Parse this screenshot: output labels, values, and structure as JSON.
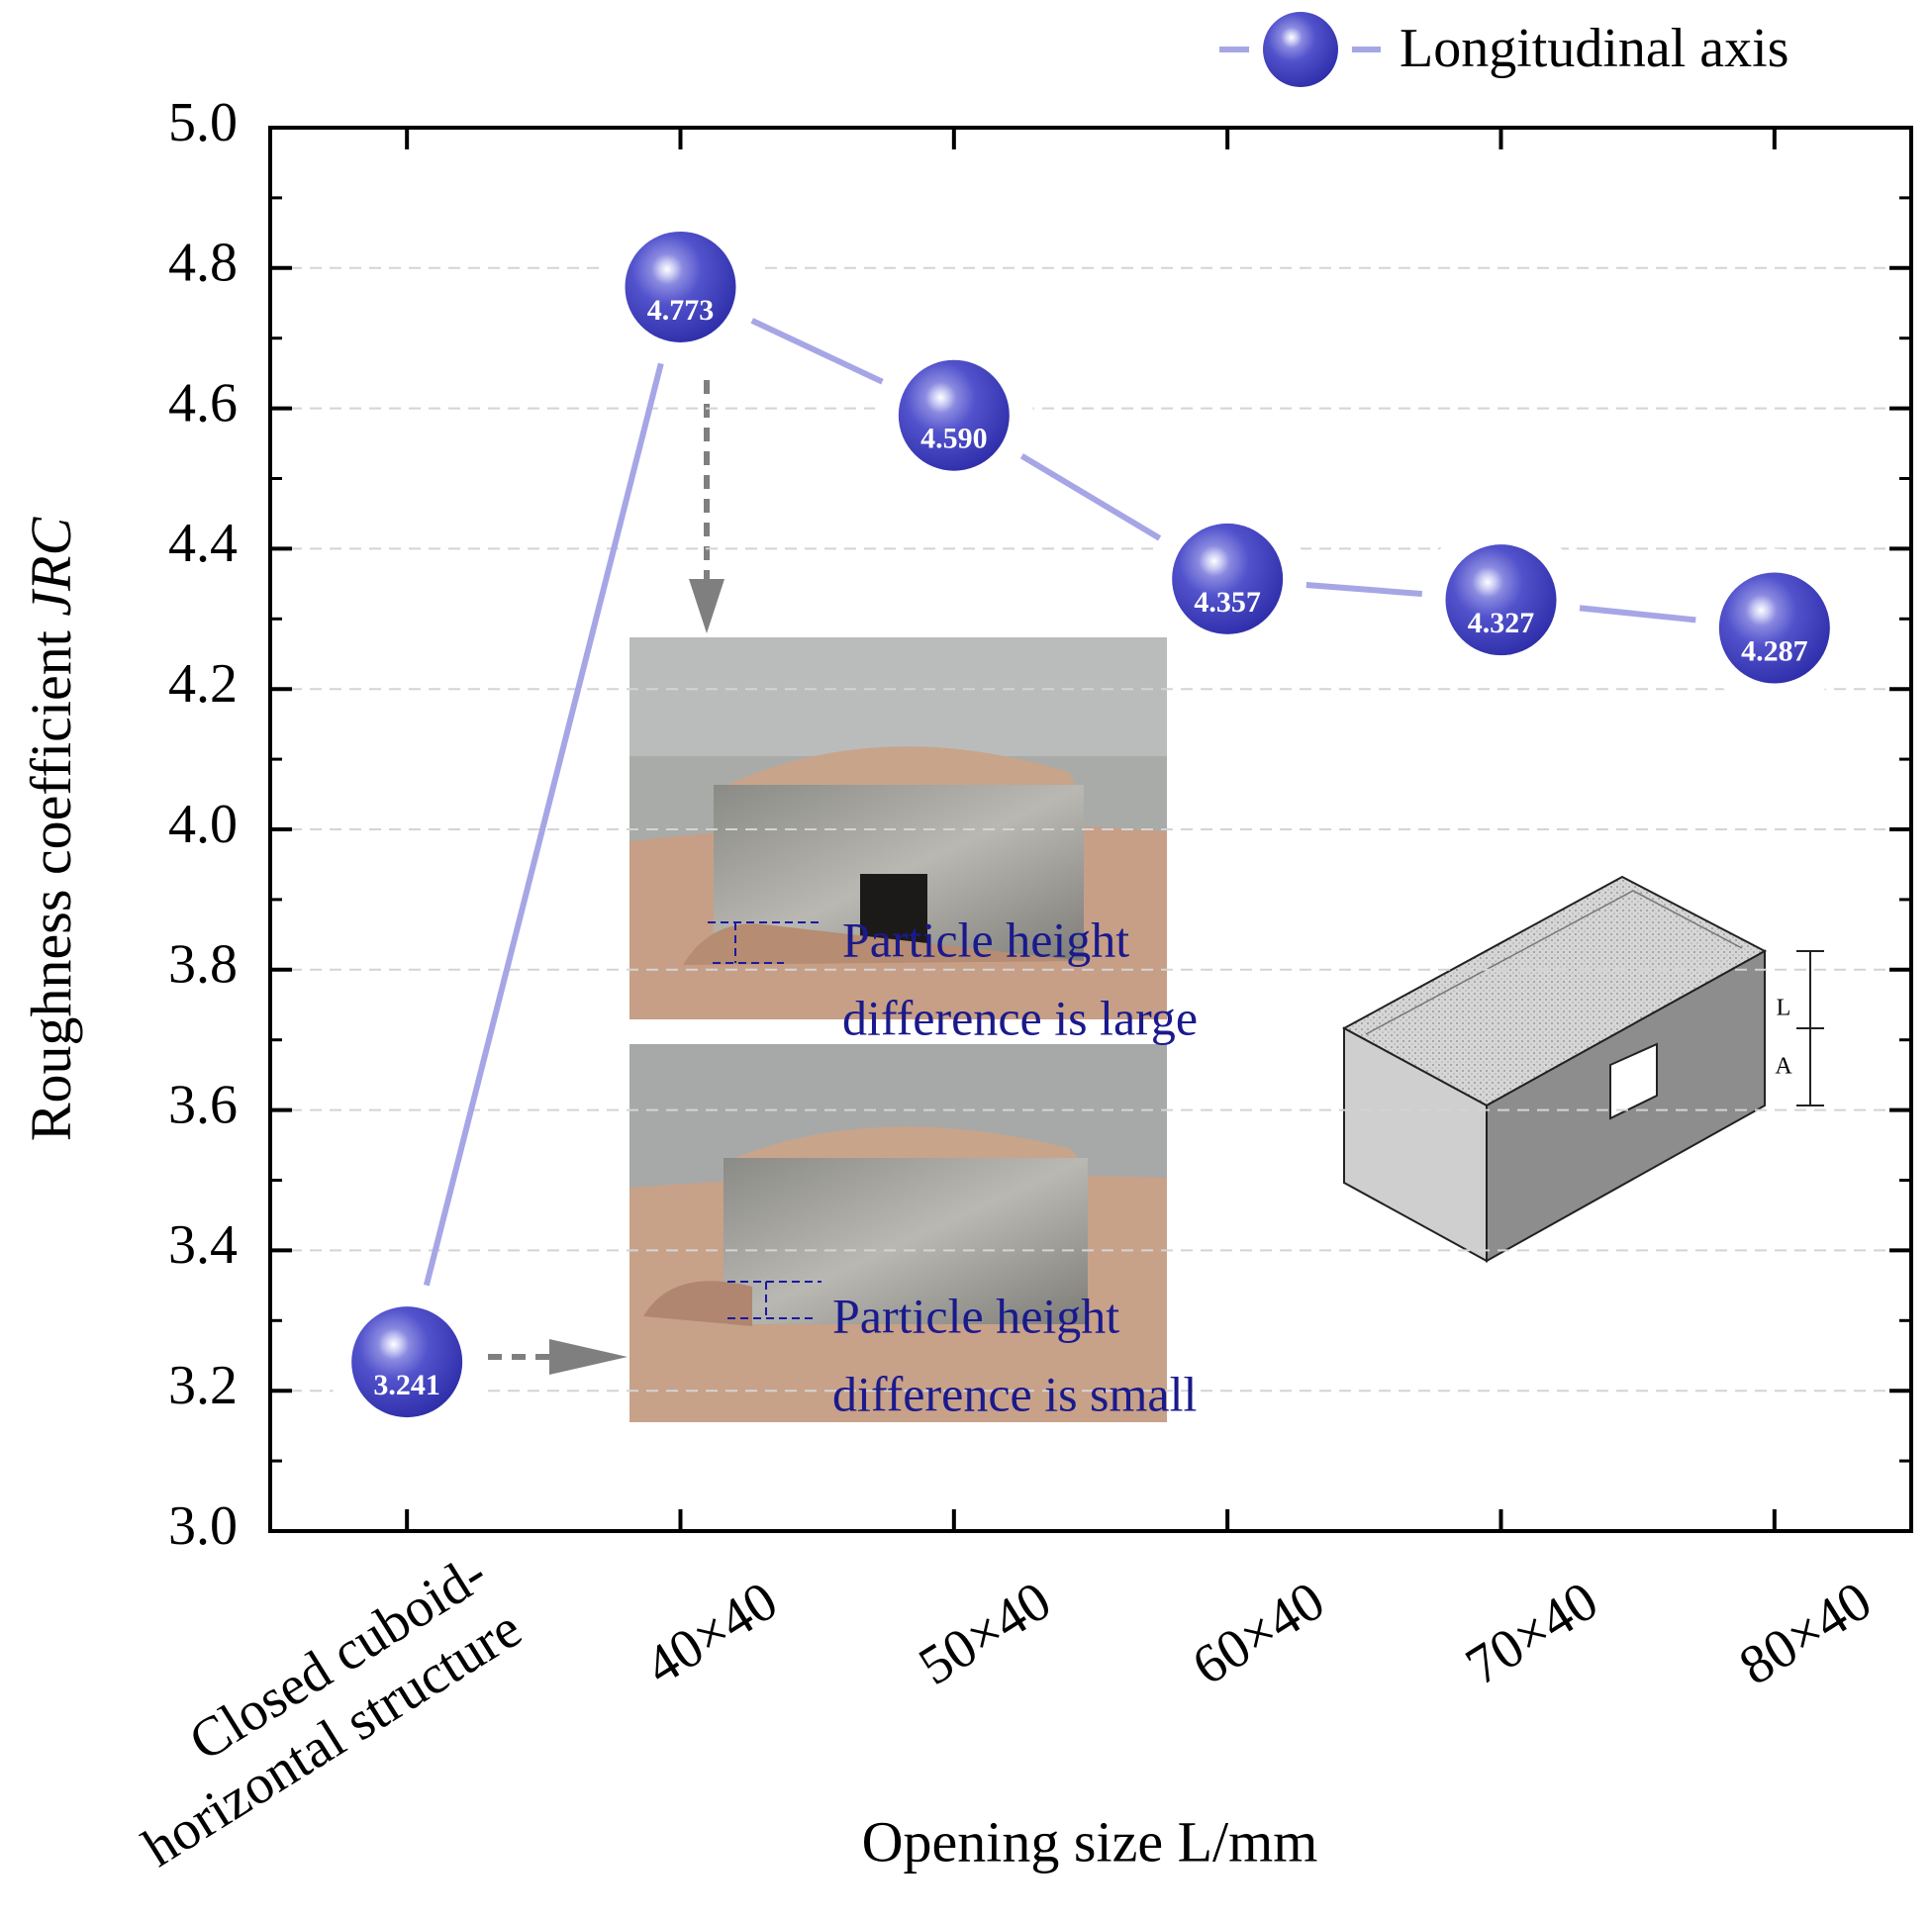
{
  "chart_data": {
    "type": "line",
    "x_label": "Opening size L/mm",
    "y_label": {
      "text": "Roughness coefficient",
      "italic": "JRC"
    },
    "categories": [
      "Closed cuboid-\nhorizontal structure",
      "40×40",
      "50×40",
      "60×40",
      "70×40",
      "80×40"
    ],
    "series": [
      {
        "name": "Longitudinal axis",
        "color": "#4b4bc6",
        "line_color": "#a6a6e6",
        "values": [
          3.241,
          4.773,
          4.59,
          4.357,
          4.327,
          4.287
        ],
        "value_labels": [
          "3.241",
          "4.773",
          "4.590",
          "4.357",
          "4.327",
          "4.287"
        ]
      }
    ],
    "ylim": [
      3,
      5
    ],
    "yticks": [
      {
        "value": 3,
        "label": "3.0"
      },
      3.2,
      3.4,
      3.6,
      3.8,
      {
        "value": 4,
        "label": "4.0"
      },
      4.2,
      4.4,
      4.6,
      4.8,
      {
        "value": 5,
        "label": "5.0"
      }
    ],
    "grid": true,
    "legend": "top-right",
    "annotations": [
      {
        "lines": [
          "Particle height",
          "difference is large"
        ]
      },
      {
        "lines": [
          "Particle height",
          "difference is small"
        ]
      }
    ],
    "diagram_labels": [
      "L",
      "A"
    ]
  }
}
